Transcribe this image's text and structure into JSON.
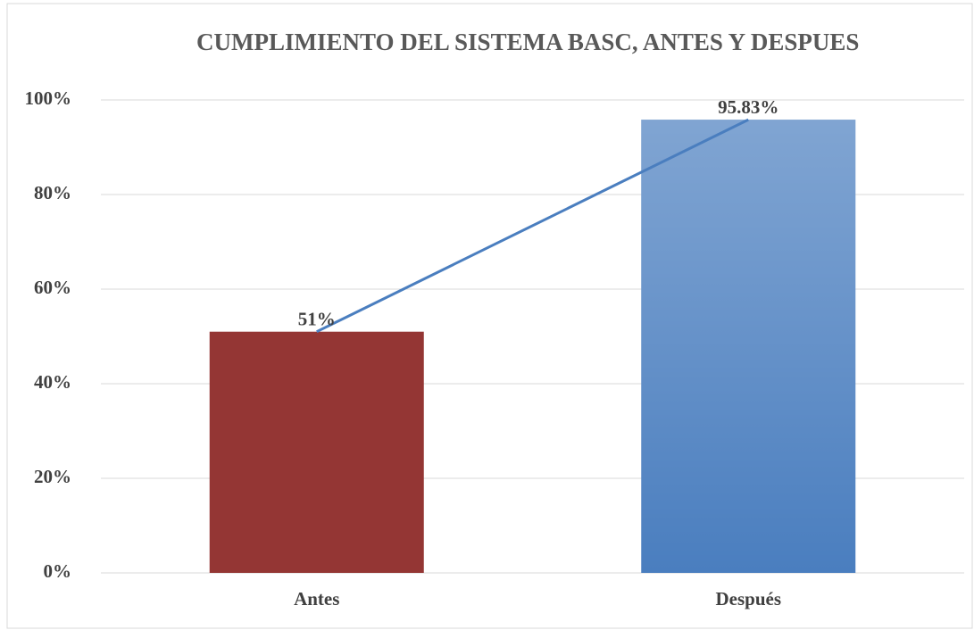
{
  "chart_data": {
    "type": "bar",
    "title": "CUMPLIMIENTO DEL SISTEMA BASC, ANTES Y DESPUES",
    "categories": [
      "Antes",
      "Después"
    ],
    "values": [
      51,
      95.83
    ],
    "value_labels": [
      "51%",
      "95.83%"
    ],
    "colors": [
      "#943634",
      "#4a7ebf"
    ],
    "line_color": "#4a7ebf",
    "ylim": [
      0,
      100
    ],
    "yticks": [
      {
        "value": 0,
        "label": "0%"
      },
      {
        "value": 20,
        "label": "20%"
      },
      {
        "value": 40,
        "label": "40%"
      },
      {
        "value": 60,
        "label": "60%"
      },
      {
        "value": 80,
        "label": "80%"
      },
      {
        "value": 100,
        "label": "100%"
      }
    ],
    "grid": true
  }
}
